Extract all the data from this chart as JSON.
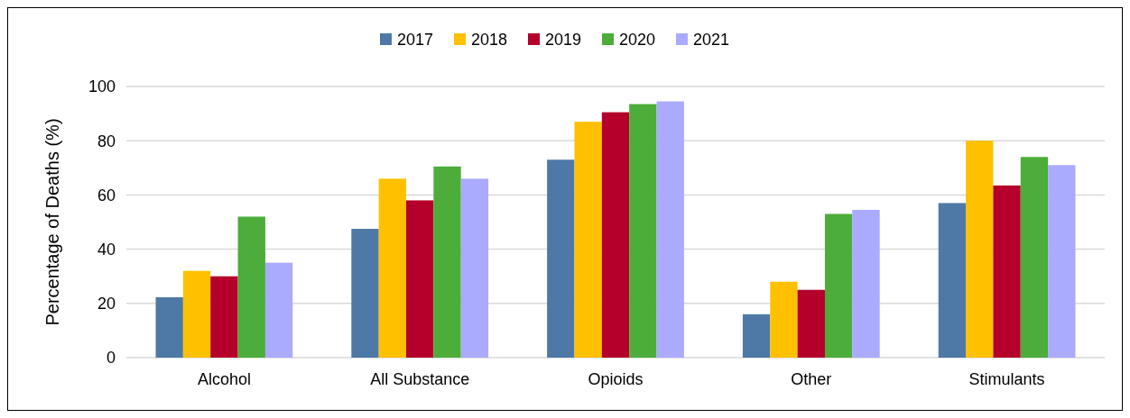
{
  "chart_data": {
    "type": "bar",
    "ylabel": "Percentage of Deaths (%)",
    "categories": [
      "Alcohol",
      "All Substance",
      "Opioids",
      "Other",
      "Stimulants"
    ],
    "series": [
      {
        "name": "2017",
        "color": "#4e79a7",
        "values": [
          22.3,
          47.5,
          73,
          16,
          57
        ]
      },
      {
        "name": "2018",
        "color": "#ffc000",
        "values": [
          32,
          66,
          87,
          28,
          80
        ]
      },
      {
        "name": "2019",
        "color": "#b5002b",
        "values": [
          30,
          58,
          90.5,
          25,
          63.5
        ]
      },
      {
        "name": "2020",
        "color": "#4cad3b",
        "values": [
          52,
          70.5,
          93.5,
          53,
          74
        ]
      },
      {
        "name": "2021",
        "color": "#aaaaff",
        "values": [
          35,
          66,
          94.5,
          54.5,
          71
        ]
      }
    ],
    "ylim": [
      0,
      100
    ],
    "yticks": [
      0,
      20,
      40,
      60,
      80,
      100
    ],
    "grid": "y",
    "legend": "top"
  }
}
